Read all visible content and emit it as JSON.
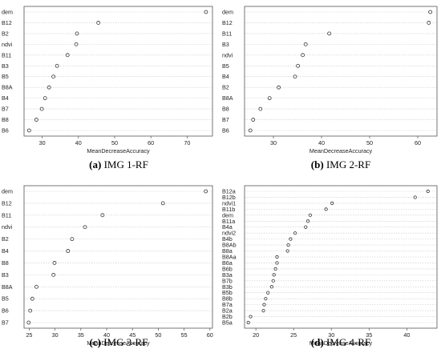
{
  "chart_data": [
    {
      "type": "scatter",
      "panel": "a",
      "caption_letter": "(a)",
      "caption_text": "IMG 1-RF",
      "xlabel": "MeanDecreaseAccuracy",
      "xlim": [
        25,
        77
      ],
      "xticks": [
        30,
        40,
        50,
        60,
        70
      ],
      "categories": [
        "dem",
        "B12",
        "B2",
        "ndvi",
        "B11",
        "B3",
        "B5",
        "B8A",
        "B4",
        "B7",
        "B8",
        "B6"
      ],
      "values": [
        75.2,
        45.5,
        39.6,
        39.4,
        37.0,
        34.1,
        33.1,
        31.9,
        30.8,
        29.9,
        28.4,
        26.4
      ]
    },
    {
      "type": "scatter",
      "panel": "b",
      "caption_letter": "(b)",
      "caption_text": "IMG 2-RF",
      "xlabel": "MeanDecreaseAccuracy",
      "xlim": [
        24,
        64
      ],
      "xticks": [
        30,
        40,
        50,
        60
      ],
      "categories": [
        "dem",
        "B12",
        "B11",
        "B3",
        "ndvi",
        "B5",
        "B4",
        "B2",
        "B8A",
        "B8",
        "B7",
        "B6"
      ],
      "values": [
        62.6,
        62.3,
        41.6,
        36.7,
        36.1,
        35.1,
        34.5,
        31.1,
        29.2,
        27.3,
        25.8,
        25.2
      ]
    },
    {
      "type": "scatter",
      "panel": "c",
      "caption_letter": "(c)",
      "caption_text": "IMG 3-RF",
      "xlabel": "MeanDecreaseAccuracy",
      "xlim": [
        24,
        60.5
      ],
      "xticks": [
        25,
        30,
        35,
        40,
        45,
        50,
        55,
        60
      ],
      "categories": [
        "dem",
        "B12",
        "B11",
        "ndvi",
        "B2",
        "B4",
        "B8",
        "B3",
        "B8A",
        "B5",
        "B6",
        "B7"
      ],
      "values": [
        59.2,
        50.9,
        39.2,
        35.8,
        33.3,
        32.5,
        29.9,
        29.7,
        26.4,
        25.6,
        25.2,
        24.9
      ]
    },
    {
      "type": "scatter",
      "panel": "d",
      "caption_letter": "(d)",
      "caption_text": "IMG 4-RF",
      "xlabel": "MeanDecreaseAccuracy",
      "xlim": [
        18.5,
        44
      ],
      "xticks": [
        20,
        25,
        30,
        35,
        40
      ],
      "categories": [
        "B12a",
        "B12b",
        "ndvi1",
        "B11b",
        "dem",
        "B11a",
        "B4a",
        "ndvi2",
        "B4b",
        "B8Ab",
        "B8a",
        "B8Aa",
        "B6a",
        "B6b",
        "B3a",
        "B7b",
        "B3b",
        "B5b",
        "B8b",
        "B7a",
        "B2a",
        "B2b",
        "B5a"
      ],
      "values": [
        42.8,
        41.1,
        30.1,
        29.3,
        27.2,
        26.9,
        26.6,
        25.2,
        24.6,
        24.3,
        24.2,
        22.8,
        22.8,
        22.6,
        22.4,
        22.3,
        22.1,
        21.6,
        21.3,
        21.1,
        21.0,
        19.3,
        19.0
      ]
    }
  ]
}
